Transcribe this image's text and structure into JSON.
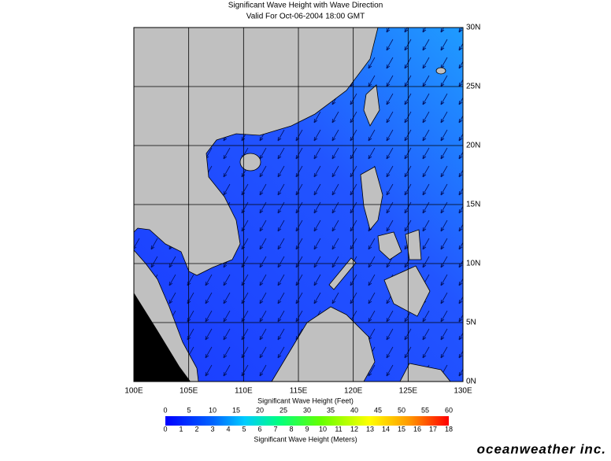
{
  "title": "Significant Wave Height with Wave Direction",
  "subtitle": "Valid For Oct-06-2004 18:00 GMT",
  "map": {
    "lon_labels": [
      "100E",
      "105E",
      "110E",
      "115E",
      "120E",
      "125E",
      "130E"
    ],
    "lat_labels": [
      "0N",
      "5N",
      "10N",
      "15N",
      "20N",
      "25N",
      "30N"
    ]
  },
  "colorbar": {
    "feet_label": "Significant Wave Height (Feet)",
    "feet_ticks": [
      "0",
      "5",
      "10",
      "15",
      "20",
      "25",
      "30",
      "35",
      "40",
      "45",
      "50",
      "55",
      "60"
    ],
    "meters_ticks": [
      "0",
      "1",
      "2",
      "3",
      "4",
      "5",
      "6",
      "7",
      "8",
      "9",
      "10",
      "11",
      "12",
      "13",
      "14",
      "15",
      "16",
      "17",
      "18"
    ],
    "meters_label": "Significant Wave Height (Meters)"
  },
  "brand": "oceanweather inc."
}
